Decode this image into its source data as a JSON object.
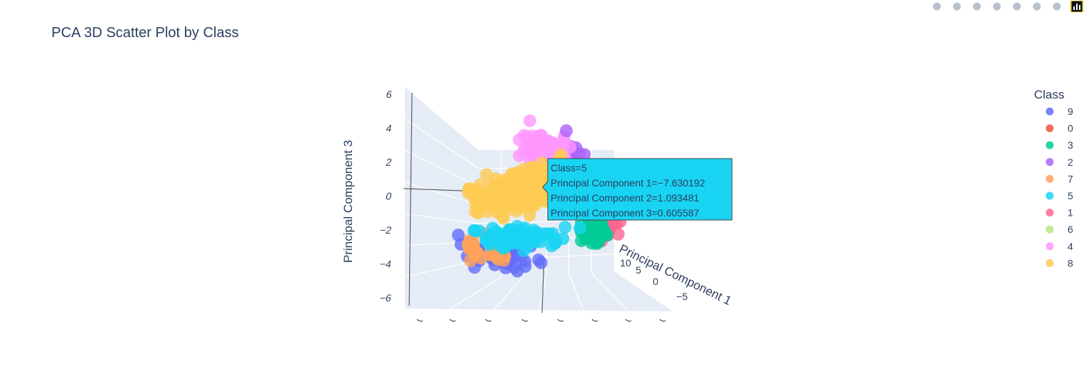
{
  "modebar": [
    {
      "name": "camera-icon",
      "title": "Download plot as a png"
    },
    {
      "name": "zoom-icon",
      "title": "Zoom"
    },
    {
      "name": "pan-icon",
      "title": "Pan"
    },
    {
      "name": "orbit-rotation-icon",
      "title": "Orbital rotation"
    },
    {
      "name": "turntable-rotation-icon",
      "title": "Turntable rotation"
    },
    {
      "name": "reset-camera-icon",
      "title": "Reset camera to default"
    },
    {
      "name": "last-save-camera-icon",
      "title": "Reset camera to last save"
    },
    {
      "name": "plotly-logo-icon",
      "title": "Produced with Plotly"
    }
  ],
  "colors": {
    "9": "#636efa",
    "0": "#ef553b",
    "3": "#00cc96",
    "2": "#ab63fa",
    "7": "#ffa15a",
    "5": "#19d3f3",
    "1": "#ff6692",
    "6": "#b6e880",
    "4": "#ff97ff",
    "8": "#fecb52",
    "scene_bg": "#e5ecf6",
    "hover_bg": "#19d3f3"
  },
  "chart_data": {
    "type": "scatter3d",
    "title": "PCA 3D Scatter Plot by Class",
    "xlabel": "Principal Component 1",
    "ylabel": "Principal Component 2",
    "zlabel": "Principal Component 3",
    "z_ticks": [
      "6",
      "4",
      "2",
      "0",
      "−2",
      "−4",
      "−6"
    ],
    "x_ticks": [
      "10",
      "5",
      "0",
      "−5"
    ],
    "legend_title": "Class",
    "legend_placement": "right",
    "classes": [
      "9",
      "0",
      "3",
      "2",
      "7",
      "5",
      "1",
      "6",
      "4",
      "8"
    ],
    "hover": {
      "class_label": "Class=5",
      "pc1_label": "Principal Component 1=−7.630192",
      "pc2_label": "Principal Component 2=1.093481",
      "pc3_label": "Principal Component 3=0.605587",
      "pc1": -7.630192,
      "pc2": 1.093481,
      "pc3": 0.605587
    }
  }
}
